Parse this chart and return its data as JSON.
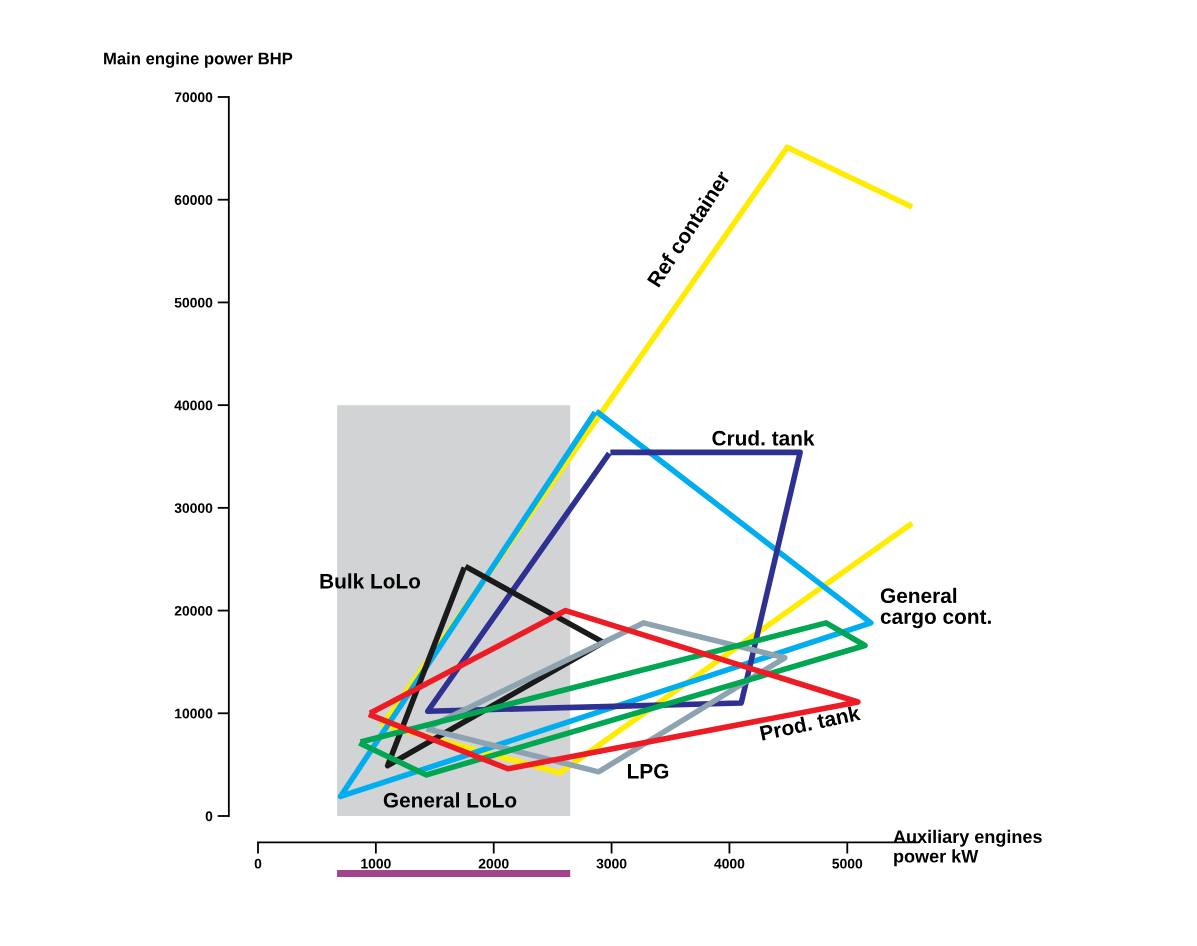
{
  "chart_data": {
    "type": "line",
    "xlabel": "Auxiliary engines\npower kW",
    "ylabel": "Main engine power BHP",
    "xlim": [
      0,
      5600
    ],
    "ylim": [
      0,
      70000
    ],
    "xticks": [
      0,
      1000,
      2000,
      3000,
      4000,
      5000
    ],
    "yticks": [
      0,
      10000,
      20000,
      30000,
      40000,
      50000,
      60000,
      70000
    ],
    "grid": false,
    "marker": "none",
    "line_style": "solid",
    "series": [
      {
        "type": "area",
        "color": "#d1d3d4",
        "x": [
          671,
          2649
        ],
        "values": [
          40000,
          40000
        ]
      },
      {
        "color": "#ffec00",
        "x": [
          5550,
          4490,
          1060,
          2560,
          5550
        ],
        "values": [
          59300,
          65100,
          8900,
          4200,
          28500
        ]
      },
      {
        "color": "#00aeef",
        "x": [
          2870,
          5200,
          700,
          2860
        ],
        "values": [
          39400,
          18800,
          1900,
          39300
        ]
      },
      {
        "color": "#2e3192",
        "x": [
          2990,
          4600,
          4100,
          1440,
          2980
        ],
        "values": [
          35400,
          35400,
          11000,
          10200,
          35300
        ]
      },
      {
        "color": "#1a1a1a",
        "x": [
          1760,
          2930,
          1100,
          1750
        ],
        "values": [
          24300,
          16900,
          4900,
          24200
        ]
      },
      {
        "color": "#8ea3b0",
        "x": [
          1440,
          3270,
          4470,
          2890,
          1430
        ],
        "values": [
          8600,
          18800,
          15400,
          4300,
          8500
        ]
      },
      {
        "color": "#00a651",
        "x": [
          870,
          4820,
          5150,
          1430,
          860
        ],
        "values": [
          7200,
          18800,
          16600,
          4000,
          7100
        ]
      },
      {
        "color": "#ed1c24",
        "x": [
          950,
          2610,
          5090,
          2120,
          940
        ],
        "values": [
          10000,
          20000,
          11100,
          4600,
          9900
        ]
      }
    ],
    "annotations": [
      "Ref container",
      "Crud. tank",
      "Bulk LoLo",
      "General\ncargo cont.",
      "Prod. tank",
      "LPG",
      "General LoLo"
    ]
  }
}
